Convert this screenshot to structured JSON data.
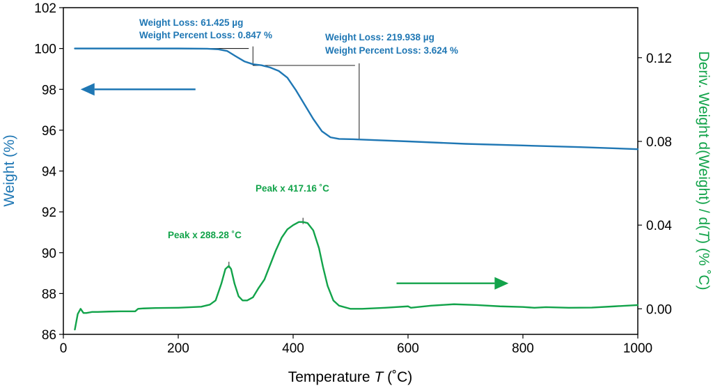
{
  "chart_data": {
    "type": "line",
    "x_axis": {
      "label_main": "Temperature ",
      "label_symbol": "T",
      "label_unit": " (˚C)",
      "range": [
        0,
        1000
      ],
      "ticks": [
        0,
        200,
        400,
        600,
        800,
        1000
      ],
      "tick_labels": [
        "0",
        "200",
        "400",
        "600",
        "800",
        "1000"
      ]
    },
    "y_axis_left": {
      "label": "Weight (%)",
      "color": "#1f77b4",
      "range": [
        86,
        102
      ],
      "ticks": [
        86,
        88,
        90,
        92,
        94,
        96,
        98,
        100,
        102
      ],
      "tick_labels": [
        "86",
        "88",
        "90",
        "92",
        "94",
        "96",
        "98",
        "100",
        "102"
      ]
    },
    "y_axis_right": {
      "label_main": "Deriv. Weight d(Weight) / d(",
      "label_symbol": "T",
      "label_end": ") (% ˚C)",
      "color": "#12a34a",
      "range": [
        -0.0122,
        0.1439
      ],
      "ticks": [
        0.0,
        0.04,
        0.08,
        0.12
      ],
      "tick_labels": [
        "0.00",
        "0.04",
        "0.08",
        "0.12"
      ]
    },
    "grid": false,
    "series": [
      {
        "axis": "left",
        "color": "#1f77b4",
        "x": [
          20,
          100,
          200,
          250,
          270,
          285,
          300,
          315,
          330,
          345,
          360,
          375,
          390,
          405,
          420,
          435,
          450,
          465,
          480,
          500,
          600,
          700,
          800,
          900,
          1000
        ],
        "y": [
          100.0,
          100.0,
          100.0,
          99.99,
          99.96,
          99.88,
          99.62,
          99.37,
          99.23,
          99.18,
          99.07,
          98.9,
          98.57,
          97.95,
          97.25,
          96.55,
          95.95,
          95.65,
          95.57,
          95.56,
          95.45,
          95.33,
          95.25,
          95.17,
          95.07
        ]
      },
      {
        "axis": "right",
        "color": "#12a34a",
        "x": [
          20,
          25,
          30,
          35,
          40,
          50,
          60,
          80,
          100,
          125,
          130,
          140,
          160,
          200,
          240,
          255,
          265,
          275,
          282,
          288,
          292,
          298,
          305,
          312,
          320,
          330,
          340,
          350,
          360,
          370,
          380,
          390,
          400,
          410,
          417,
          425,
          435,
          445,
          452,
          460,
          470,
          480,
          500,
          520,
          560,
          600,
          605,
          615,
          640,
          680,
          720,
          760,
          800,
          820,
          840,
          880,
          920,
          960,
          1000
        ],
        "y": [
          -0.0099,
          -0.0025,
          0.0,
          -0.002,
          -0.002,
          -0.0015,
          -0.0015,
          -0.0013,
          -0.0012,
          -0.0012,
          0.0,
          0.0002,
          0.0004,
          0.0005,
          0.001,
          0.002,
          0.004,
          0.012,
          0.019,
          0.0205,
          0.019,
          0.012,
          0.006,
          0.004,
          0.004,
          0.0055,
          0.01,
          0.014,
          0.021,
          0.028,
          0.034,
          0.038,
          0.04,
          0.0415,
          0.0415,
          0.041,
          0.0375,
          0.029,
          0.02,
          0.011,
          0.004,
          0.0015,
          0.0,
          0.0,
          0.0005,
          0.0012,
          0.0005,
          0.0008,
          0.0015,
          0.0022,
          0.0018,
          0.0012,
          0.0009,
          0.0005,
          0.0008,
          0.0005,
          0.0006,
          0.0012,
          0.0018
        ]
      }
    ],
    "annotations": {
      "loss1": {
        "line1": "Weight Loss: 61.425 µg",
        "line2": "Weight Percent Loss: 0.847 %",
        "x_start": 250,
        "y_start": 100.0,
        "x_end": 330,
        "y_end": 99.17,
        "x_tick": 330,
        "y_tick_top": 100.0,
        "color": "#1f77b4"
      },
      "loss2": {
        "line1": "Weight Loss: 219.938 µg",
        "line2": "Weight Percent Loss: 3.624 %",
        "x_start": 330,
        "y_start": 99.17,
        "x_end": 515,
        "y_end": 95.55,
        "x_tick": 515,
        "y_tick_top": 99.17,
        "color": "#1f77b4"
      },
      "peak1": {
        "label": "Peak x 288.28 ˚C",
        "x": 288.28,
        "y": 0.0205,
        "color": "#12a34a"
      },
      "peak2": {
        "label": "Peak x 417.16 ˚C",
        "x": 417.16,
        "y": 0.0415,
        "color": "#12a34a"
      }
    },
    "arrows": [
      {
        "direction": "left",
        "axis": "left",
        "x_from": 230,
        "x_to": 30,
        "y": 98.0,
        "color": "#1f77b4"
      },
      {
        "direction": "right",
        "axis": "left",
        "x_from": 580,
        "x_to": 775,
        "y": 88.5,
        "color": "#12a34a"
      }
    ]
  }
}
